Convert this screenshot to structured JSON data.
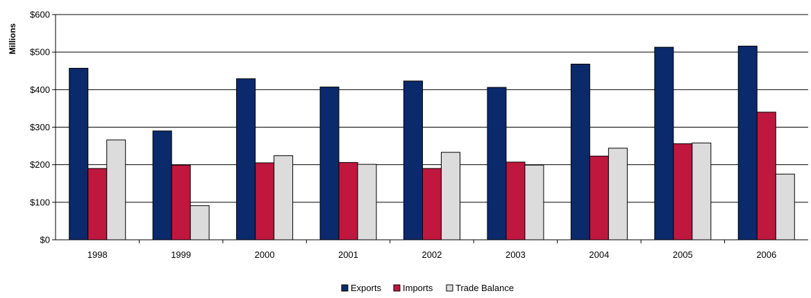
{
  "chart_data": {
    "type": "bar",
    "title": "",
    "xlabel": "",
    "ylabel": "Millions",
    "categories": [
      "1998",
      "1999",
      "2000",
      "2001",
      "2002",
      "2003",
      "2004",
      "2005",
      "2006"
    ],
    "series": [
      {
        "name": "Exports",
        "color": "#0b2a6b",
        "values": [
          457,
          290,
          429,
          407,
          423,
          406,
          468,
          513,
          516
        ]
      },
      {
        "name": "Imports",
        "color": "#c0173f",
        "values": [
          190,
          199,
          205,
          206,
          190,
          207,
          223,
          256,
          340
        ]
      },
      {
        "name": "Trade Balance",
        "color": "#dcdcdc",
        "values": [
          266,
          91,
          224,
          201,
          233,
          199,
          244,
          258,
          175
        ]
      }
    ],
    "ylim": [
      0,
      600
    ],
    "yticks": [
      0,
      100,
      200,
      300,
      400,
      500,
      600
    ],
    "ytick_labels": [
      "$0",
      "$100",
      "$200",
      "$300",
      "$400",
      "$500",
      "$600"
    ],
    "grid": true,
    "legend_position": "bottom"
  }
}
